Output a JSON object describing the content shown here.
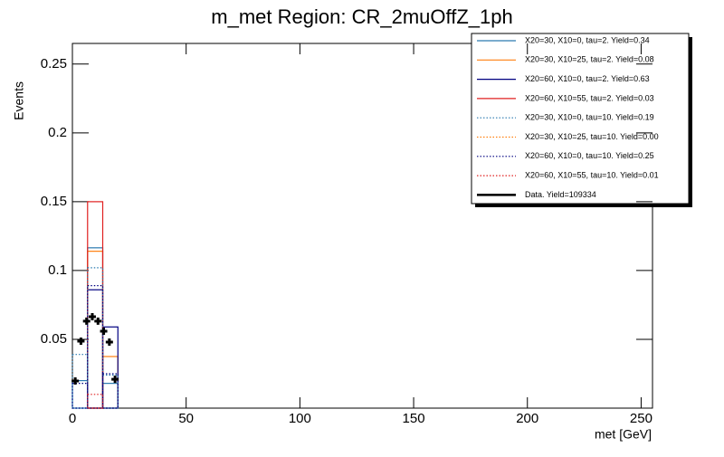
{
  "chart_data": {
    "type": "histogram",
    "title": "m_met Region: CR_2muOffZ_1ph",
    "x_label": "met [GeV]",
    "y_label": "Events",
    "xlim": [
      0,
      255
    ],
    "xticks": [
      0,
      50,
      100,
      150,
      200,
      250
    ],
    "ylim": [
      0,
      0.265
    ],
    "yticks": [
      0.05,
      0.1,
      0.15,
      0.2,
      0.25
    ],
    "bins": [
      0,
      6.67,
      13.33,
      20
    ],
    "series": [
      {
        "name": "X20=30, X10=0, tau=2. Yield=0.34",
        "color": "#2a7ab0",
        "style": "solid",
        "values": [
          0.02,
          0.1165,
          0.018
        ]
      },
      {
        "name": "X20=30, X10=25, tau=2. Yield=0.08",
        "color": "#ff7f0e",
        "style": "solid",
        "values": [
          0,
          0.114,
          0.0375
        ]
      },
      {
        "name": "X20=60, X10=0, tau=2. Yield=0.63",
        "color": "#000080",
        "style": "solid",
        "values": [
          0,
          0.086,
          0.059
        ]
      },
      {
        "name": "X20=60, X10=55, tau=2. Yield=0.03",
        "color": "#e02020",
        "style": "solid",
        "values": [
          0,
          0.15,
          0
        ]
      },
      {
        "name": "X20=30, X10=0, tau=10. Yield=0.19",
        "color": "#2a7ab0",
        "style": "dotted",
        "values": [
          0.039,
          0.102,
          0.024
        ]
      },
      {
        "name": "X20=30, X10=25, tau=10. Yield=0.00",
        "color": "#ff7f0e",
        "style": "dotted",
        "values": [
          0,
          0,
          0
        ]
      },
      {
        "name": "X20=60, X10=0, tau=10. Yield=0.25",
        "color": "#000080",
        "style": "dotted",
        "values": [
          0.018,
          0.089,
          0.025
        ]
      },
      {
        "name": "X20=60, X10=55, tau=10. Yield=0.01",
        "color": "#e02020",
        "style": "dotted",
        "values": [
          0,
          0.01,
          0
        ]
      }
    ],
    "data": {
      "name": "Data. Yield=109334",
      "color": "#000000",
      "x": [
        1.25,
        3.75,
        6.25,
        8.75,
        11.25,
        13.75,
        16.25,
        18.75
      ],
      "values": [
        0.0197,
        0.0487,
        0.0632,
        0.0664,
        0.0632,
        0.0559,
        0.048,
        0.021
      ]
    }
  }
}
